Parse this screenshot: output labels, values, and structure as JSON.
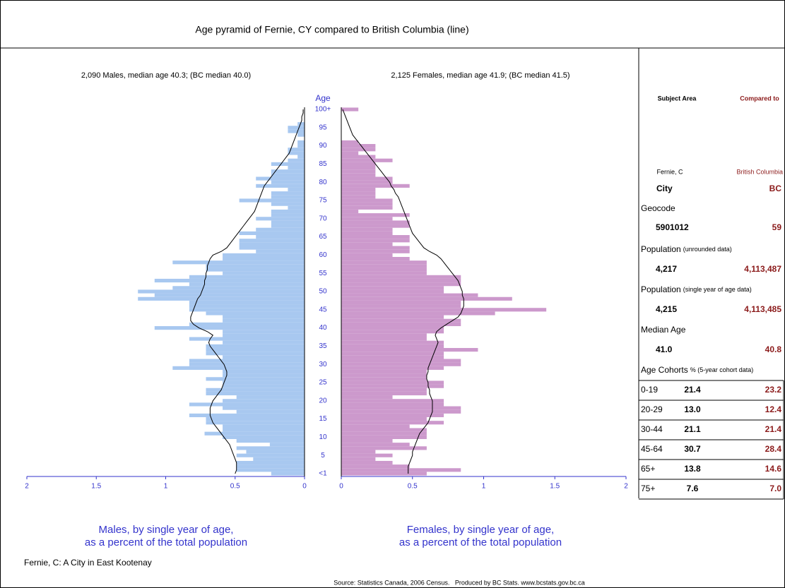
{
  "title": "Age pyramid of Fernie, CY compared to British Columbia (line)",
  "chart_data": [
    {
      "type": "bar",
      "horizontal": true,
      "xreverse": true,
      "subtitle": "2,090 Males, median age 40.3; (BC median 40.0)",
      "ylabel": "Age",
      "xlabel": [
        "Males, by single year of age,",
        "as a percent of the total population"
      ],
      "categories": [
        "<1",
        null,
        null,
        null,
        null,
        "5",
        null,
        null,
        null,
        null,
        "10",
        null,
        null,
        null,
        null,
        "15",
        null,
        null,
        null,
        null,
        "20",
        null,
        null,
        null,
        null,
        "25",
        null,
        null,
        null,
        null,
        "30",
        null,
        null,
        null,
        null,
        "35",
        null,
        null,
        null,
        null,
        "40",
        null,
        null,
        null,
        null,
        "45",
        null,
        null,
        null,
        null,
        "50",
        null,
        null,
        null,
        null,
        "55",
        null,
        null,
        null,
        null,
        "60",
        null,
        null,
        null,
        null,
        "65",
        null,
        null,
        null,
        null,
        "70",
        null,
        null,
        null,
        null,
        "75",
        null,
        null,
        null,
        null,
        "80",
        null,
        null,
        null,
        null,
        "85",
        null,
        null,
        null,
        null,
        "90",
        null,
        null,
        null,
        null,
        "95",
        null,
        null,
        null,
        null,
        "100+"
      ],
      "xlim": [
        0,
        2
      ],
      "xticks": [
        0,
        0.5,
        1,
        1.5,
        2
      ],
      "axis_color": "#3333cc",
      "series": [
        {
          "type": "bar",
          "color": "#a8c8f0",
          "values": [
            0.24,
            0.49,
            0.49,
            0.49,
            0.37,
            0.49,
            0.42,
            0.49,
            0.25,
            0.49,
            0.59,
            0.72,
            0.59,
            0.59,
            0.71,
            0.71,
            0.83,
            0.49,
            0.59,
            0.83,
            0.59,
            0.49,
            0.71,
            0.71,
            0.59,
            0.59,
            0.71,
            0.59,
            0.59,
            0.95,
            0.83,
            0.83,
            0.59,
            0.71,
            0.71,
            0.71,
            0.59,
            0.83,
            0.59,
            0.59,
            1.08,
            0.83,
            0.59,
            0.59,
            0.71,
            0.83,
            0.83,
            0.83,
            1.2,
            1.08,
            1.2,
            0.95,
            0.83,
            1.08,
            0.83,
            0.59,
            0.71,
            0.71,
            0.95,
            0.59,
            0.59,
            0.35,
            0.47,
            0.47,
            0.47,
            0.35,
            0.47,
            0.35,
            0.24,
            0.24,
            0.35,
            0.24,
            0.24,
            0.12,
            0.24,
            0.47,
            0.24,
            0.24,
            0.12,
            0.35,
            0.24,
            0.35,
            0.24,
            0.24,
            0.12,
            0.24,
            0.12,
            0.05,
            0.12,
            0.12,
            0.05,
            0.05,
            0,
            0.05,
            0.12,
            0.12,
            0.05,
            0,
            0,
            0,
            0
          ]
        },
        {
          "type": "line",
          "color": "#000000",
          "values": [
            0.5,
            0.49,
            0.49,
            0.49,
            0.5,
            0.51,
            0.52,
            0.53,
            0.54,
            0.56,
            0.58,
            0.6,
            0.62,
            0.64,
            0.66,
            0.67,
            0.68,
            0.68,
            0.68,
            0.67,
            0.66,
            0.64,
            0.62,
            0.6,
            0.59,
            0.58,
            0.57,
            0.56,
            0.56,
            0.57,
            0.58,
            0.6,
            0.62,
            0.64,
            0.66,
            0.68,
            0.69,
            0.68,
            0.66,
            0.7,
            0.76,
            0.8,
            0.82,
            0.82,
            0.81,
            0.8,
            0.79,
            0.78,
            0.77,
            0.75,
            0.74,
            0.73,
            0.72,
            0.72,
            0.71,
            0.71,
            0.7,
            0.7,
            0.69,
            0.68,
            0.66,
            0.6,
            0.56,
            0.54,
            0.52,
            0.5,
            0.48,
            0.46,
            0.44,
            0.42,
            0.4,
            0.38,
            0.36,
            0.35,
            0.34,
            0.33,
            0.32,
            0.31,
            0.3,
            0.29,
            0.27,
            0.25,
            0.23,
            0.21,
            0.19,
            0.17,
            0.15,
            0.13,
            0.11,
            0.1,
            0.09,
            0.08,
            0.07,
            0.06,
            0.05,
            0.04,
            0.03,
            0.02,
            0.02,
            0.01,
            0.01
          ]
        }
      ]
    },
    {
      "type": "bar",
      "horizontal": true,
      "xreverse": false,
      "subtitle": "2,125 Females, median age 41.9; (BC median 41.5)",
      "xlabel": [
        "Females, by single year of age,",
        "as a percent of the total population"
      ],
      "xlim": [
        0,
        2
      ],
      "xticks": [
        0,
        0.5,
        1,
        1.5,
        2
      ],
      "axis_color": "#3333cc",
      "series": [
        {
          "type": "bar",
          "color": "#cc99cc",
          "values": [
            0.6,
            0.84,
            0.48,
            0.36,
            0.24,
            0.36,
            0.24,
            0.6,
            0.48,
            0.36,
            0.6,
            0.6,
            0.6,
            0.48,
            0.72,
            0.6,
            0.72,
            0.84,
            0.84,
            0.72,
            0.72,
            0.36,
            0.6,
            0.6,
            0.72,
            0.72,
            0.6,
            0.6,
            0.6,
            0.72,
            0.84,
            0.84,
            0.72,
            0.72,
            0.96,
            0.72,
            0.72,
            0.6,
            0.6,
            0.72,
            0.72,
            0.84,
            0.84,
            0.72,
            1.08,
            1.44,
            0.84,
            0.84,
            1.2,
            0.96,
            0.72,
            0.72,
            0.84,
            0.84,
            0.84,
            0.6,
            0.6,
            0.6,
            0.6,
            0.48,
            0.36,
            0.48,
            0.48,
            0.36,
            0.48,
            0.48,
            0.36,
            0.36,
            0.48,
            0.48,
            0.36,
            0.48,
            0.12,
            0.36,
            0.36,
            0.36,
            0.24,
            0.24,
            0.24,
            0.48,
            0.36,
            0.36,
            0.24,
            0.24,
            0.24,
            0.24,
            0.36,
            0.24,
            0.12,
            0.24,
            0.24,
            0.12,
            0,
            0,
            0,
            0,
            0,
            0,
            0,
            0,
            0.12
          ]
        },
        {
          "type": "line",
          "color": "#000000",
          "values": [
            0.47,
            0.47,
            0.47,
            0.48,
            0.49,
            0.5,
            0.5,
            0.51,
            0.52,
            0.53,
            0.54,
            0.55,
            0.57,
            0.59,
            0.61,
            0.62,
            0.63,
            0.64,
            0.64,
            0.64,
            0.64,
            0.63,
            0.62,
            0.62,
            0.61,
            0.61,
            0.6,
            0.6,
            0.61,
            0.61,
            0.62,
            0.63,
            0.64,
            0.65,
            0.66,
            0.67,
            0.68,
            0.67,
            0.66,
            0.67,
            0.7,
            0.74,
            0.78,
            0.82,
            0.84,
            0.85,
            0.86,
            0.86,
            0.86,
            0.85,
            0.85,
            0.84,
            0.83,
            0.82,
            0.8,
            0.78,
            0.76,
            0.74,
            0.72,
            0.7,
            0.67,
            0.62,
            0.58,
            0.56,
            0.54,
            0.52,
            0.5,
            0.49,
            0.48,
            0.47,
            0.46,
            0.45,
            0.44,
            0.43,
            0.42,
            0.41,
            0.4,
            0.38,
            0.37,
            0.35,
            0.34,
            0.32,
            0.3,
            0.28,
            0.26,
            0.24,
            0.22,
            0.2,
            0.18,
            0.16,
            0.14,
            0.12,
            0.1,
            0.08,
            0.07,
            0.06,
            0.05,
            0.04,
            0.03,
            0.02,
            0.01
          ]
        }
      ]
    }
  ],
  "side_table": {
    "headers": [
      "Subject Area",
      "Compared to"
    ],
    "names": [
      "Fernie, C",
      "British Columbia"
    ],
    "types": [
      "City",
      "BC"
    ],
    "geocode_label": "Geocode",
    "geocode": [
      "5901012",
      "59"
    ],
    "population_label": "Population",
    "population_note": "(unrounded data)",
    "population": [
      "4,217",
      "4,113,487"
    ],
    "population2_label": "Population",
    "population2_note": "(single year of age data)",
    "population2": [
      "4,215",
      "4,113,485"
    ],
    "median_label": "Median Age",
    "median": [
      "41.0",
      "40.8"
    ],
    "cohort_label": "Age Cohorts",
    "cohort_note": "% (5-year cohort data)",
    "cohorts": [
      [
        "0-19",
        "21.4",
        "23.2"
      ],
      [
        "20-29",
        "13.0",
        "12.4"
      ],
      [
        "30-44",
        "21.1",
        "21.4"
      ],
      [
        "45-64",
        "30.7",
        "28.4"
      ],
      [
        "65+",
        "13.8",
        "14.6"
      ],
      [
        "75+",
        "7.6",
        "7.0"
      ]
    ]
  },
  "footer_note": "Fernie, C: A City in East Kootenay",
  "source": "Source: Statistics Canada, 2006 Census.   Produced by BC Stats. www.bcstats.gov.bc.ca"
}
